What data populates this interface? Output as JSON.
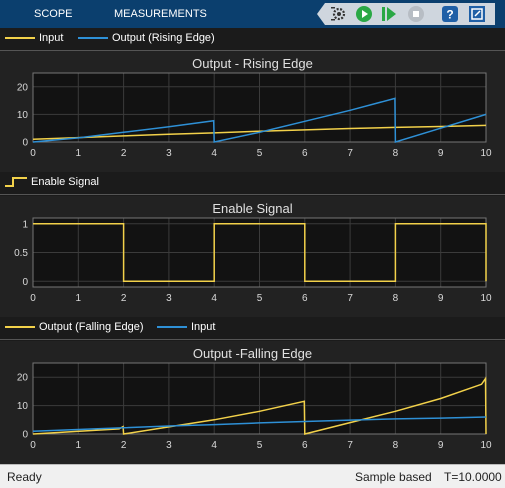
{
  "toolstrip": {
    "tabs": [
      "SCOPE",
      "MEASUREMENTS"
    ],
    "buttons": [
      "settings-icon",
      "run-icon",
      "step-forward-icon",
      "stop-icon",
      "help-icon",
      "undock-icon"
    ]
  },
  "colors": {
    "input": "#f2d14a",
    "output": "#2e90d6",
    "axes_bg": "#121212",
    "grid": "#3b3b3b"
  },
  "legend1": {
    "input": "Input",
    "output": "Output (Rising Edge)"
  },
  "legend2": {
    "enable": "Enable Signal"
  },
  "legend3": {
    "output": "Output (Falling Edge)",
    "input": "Input"
  },
  "chart_data": [
    {
      "type": "line",
      "title": "Output - Rising Edge",
      "xlim": [
        0,
        10
      ],
      "ylim": [
        0,
        25
      ],
      "x_ticks": [
        "0",
        "1",
        "2",
        "3",
        "4",
        "5",
        "6",
        "7",
        "8",
        "9",
        "10"
      ],
      "y_ticks": [
        "0",
        "10",
        "20"
      ],
      "series": [
        {
          "name": "Input",
          "color": "#f2d14a",
          "x": [
            0,
            1,
            2,
            3,
            4,
            5,
            6,
            7,
            8,
            9,
            10
          ],
          "y": [
            1.0,
            1.6,
            2.2,
            2.8,
            3.3,
            3.9,
            4.4,
            4.9,
            5.3,
            5.6,
            6.0
          ]
        },
        {
          "name": "Output (Rising Edge)",
          "color": "#2e90d6",
          "x": [
            0,
            1,
            2,
            3,
            3.99,
            4.0,
            5,
            6,
            7,
            7.99,
            8.0,
            9,
            10
          ],
          "y": [
            0,
            1.5,
            3.5,
            5.5,
            7.7,
            0,
            3.5,
            7.5,
            11.5,
            15.8,
            0,
            5,
            10
          ]
        }
      ]
    },
    {
      "type": "line",
      "title": "Enable Signal",
      "xlim": [
        0,
        10
      ],
      "ylim": [
        -0.1,
        1.1
      ],
      "x_ticks": [
        "0",
        "1",
        "2",
        "3",
        "4",
        "5",
        "6",
        "7",
        "8",
        "9",
        "10"
      ],
      "y_ticks": [
        "0",
        "0.5",
        "1"
      ],
      "series": [
        {
          "name": "Enable Signal",
          "color": "#f2d14a",
          "x": [
            0,
            2,
            2,
            4,
            4,
            6,
            6,
            8,
            8,
            10,
            10
          ],
          "y": [
            1,
            1,
            0,
            0,
            1,
            1,
            0,
            0,
            1,
            1,
            0
          ]
        }
      ]
    },
    {
      "type": "line",
      "title": "Output -Falling Edge",
      "xlim": [
        0,
        10
      ],
      "ylim": [
        0,
        25
      ],
      "x_ticks": [
        "0",
        "1",
        "2",
        "3",
        "4",
        "5",
        "6",
        "7",
        "8",
        "9",
        "10"
      ],
      "y_ticks": [
        "0",
        "10",
        "20"
      ],
      "series": [
        {
          "name": "Output (Falling Edge)",
          "color": "#f2d14a",
          "x": [
            0,
            1.9,
            1.99,
            2.0,
            3,
            4,
            5,
            5.99,
            6.0,
            7,
            8,
            9,
            9.9,
            9.99,
            10
          ],
          "y": [
            0,
            1.8,
            2.6,
            0,
            2.5,
            5,
            8,
            11.5,
            0,
            4,
            8,
            12.5,
            17.5,
            19.5,
            0
          ]
        },
        {
          "name": "Input",
          "color": "#2e90d6",
          "x": [
            0,
            1,
            2,
            3,
            4,
            5,
            6,
            7,
            8,
            9,
            10
          ],
          "y": [
            1.0,
            1.6,
            2.2,
            2.8,
            3.3,
            3.9,
            4.4,
            4.9,
            5.3,
            5.6,
            6.0
          ]
        }
      ]
    }
  ],
  "status": {
    "left": "Ready",
    "mode": "Sample based",
    "time": "T=10.0000"
  }
}
